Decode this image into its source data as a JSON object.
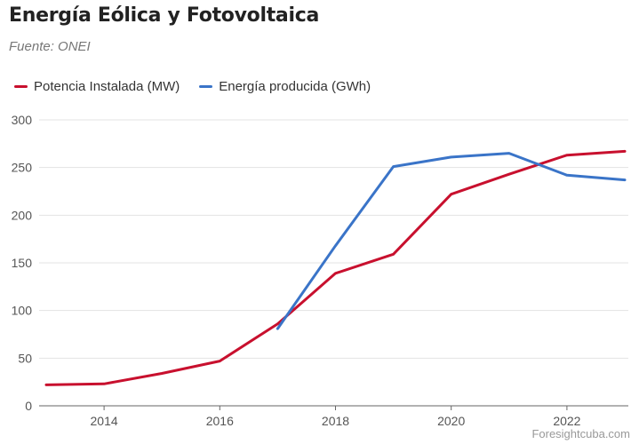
{
  "title": "Energía Eólica y Fotovoltaica",
  "subtitle": "Fuente: ONEI",
  "footer": "Foresightcuba.com",
  "chart_data": {
    "type": "line",
    "title": "Energía Eólica y Fotovoltaica",
    "xlabel": "",
    "ylabel": "",
    "xlim": [
      2013,
      2023
    ],
    "ylim": [
      0,
      300
    ],
    "x_ticks": [
      2014,
      2016,
      2018,
      2020,
      2022
    ],
    "y_ticks": [
      0,
      50,
      100,
      150,
      200,
      250,
      300
    ],
    "grid": true,
    "legend_position": "top-left",
    "series": [
      {
        "name": "Potencia Instalada (MW)",
        "color": "#c8102e",
        "points": [
          [
            2013,
            22
          ],
          [
            2014,
            23
          ],
          [
            2015,
            34
          ],
          [
            2016,
            47
          ],
          [
            2017,
            86
          ],
          [
            2018,
            139
          ],
          [
            2019,
            159
          ],
          [
            2020,
            222
          ],
          [
            2021,
            243
          ],
          [
            2022,
            263
          ],
          [
            2023,
            267
          ]
        ]
      },
      {
        "name": "Energía producida (GWh)",
        "color": "#3a74c8",
        "points": [
          [
            2017,
            81
          ],
          [
            2018,
            168
          ],
          [
            2019,
            251
          ],
          [
            2020,
            261
          ],
          [
            2021,
            265
          ],
          [
            2022,
            242
          ],
          [
            2023,
            237
          ]
        ]
      }
    ]
  }
}
